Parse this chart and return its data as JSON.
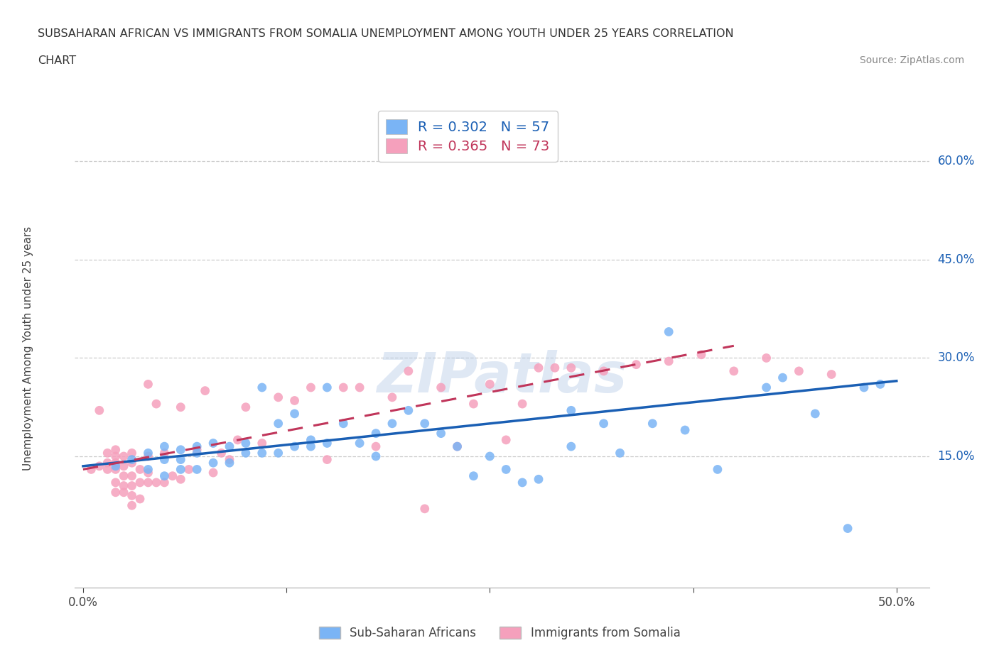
{
  "title_line1": "SUBSAHARAN AFRICAN VS IMMIGRANTS FROM SOMALIA UNEMPLOYMENT AMONG YOUTH UNDER 25 YEARS CORRELATION",
  "title_line2": "CHART",
  "source": "Source: ZipAtlas.com",
  "ylabel": "Unemployment Among Youth under 25 years",
  "xlim": [
    -0.005,
    0.52
  ],
  "ylim": [
    -0.05,
    0.68
  ],
  "xticks": [
    0.0,
    0.125,
    0.25,
    0.375,
    0.5
  ],
  "xtick_labels": [
    "0.0%",
    "",
    "",
    "",
    "50.0%"
  ],
  "ytick_right_vals": [
    0.15,
    0.3,
    0.45,
    0.6
  ],
  "ytick_right_labels": [
    "15.0%",
    "30.0%",
    "45.0%",
    "60.0%"
  ],
  "gridline_color": "#cccccc",
  "background_color": "#ffffff",
  "blue_color": "#7ab4f5",
  "blue_line_color": "#1a5fb4",
  "pink_color": "#f5a0bc",
  "pink_line_color": "#c0355a",
  "R_blue": 0.302,
  "N_blue": 57,
  "R_pink": 0.365,
  "N_pink": 73,
  "watermark": "ZIPatlas",
  "legend_label_blue": "Sub-Saharan Africans",
  "legend_label_pink": "Immigrants from Somalia",
  "blue_x": [
    0.02,
    0.03,
    0.04,
    0.04,
    0.05,
    0.05,
    0.05,
    0.06,
    0.06,
    0.06,
    0.07,
    0.07,
    0.07,
    0.08,
    0.08,
    0.09,
    0.09,
    0.1,
    0.1,
    0.11,
    0.11,
    0.12,
    0.12,
    0.13,
    0.13,
    0.14,
    0.14,
    0.15,
    0.15,
    0.16,
    0.17,
    0.18,
    0.18,
    0.19,
    0.2,
    0.21,
    0.22,
    0.23,
    0.24,
    0.25,
    0.26,
    0.27,
    0.28,
    0.3,
    0.3,
    0.32,
    0.33,
    0.35,
    0.36,
    0.37,
    0.39,
    0.42,
    0.43,
    0.45,
    0.47,
    0.48,
    0.49
  ],
  "blue_y": [
    0.135,
    0.145,
    0.13,
    0.155,
    0.12,
    0.145,
    0.165,
    0.13,
    0.145,
    0.16,
    0.13,
    0.155,
    0.165,
    0.14,
    0.17,
    0.14,
    0.165,
    0.155,
    0.17,
    0.155,
    0.255,
    0.155,
    0.2,
    0.165,
    0.215,
    0.165,
    0.175,
    0.17,
    0.255,
    0.2,
    0.17,
    0.15,
    0.185,
    0.2,
    0.22,
    0.2,
    0.185,
    0.165,
    0.12,
    0.15,
    0.13,
    0.11,
    0.115,
    0.22,
    0.165,
    0.2,
    0.155,
    0.2,
    0.34,
    0.19,
    0.13,
    0.255,
    0.27,
    0.215,
    0.04,
    0.255,
    0.26
  ],
  "pink_x": [
    0.005,
    0.01,
    0.01,
    0.015,
    0.015,
    0.015,
    0.02,
    0.02,
    0.02,
    0.02,
    0.02,
    0.02,
    0.025,
    0.025,
    0.025,
    0.025,
    0.025,
    0.03,
    0.03,
    0.03,
    0.03,
    0.03,
    0.03,
    0.035,
    0.035,
    0.035,
    0.04,
    0.04,
    0.04,
    0.04,
    0.045,
    0.045,
    0.05,
    0.05,
    0.055,
    0.06,
    0.06,
    0.065,
    0.07,
    0.075,
    0.08,
    0.085,
    0.09,
    0.095,
    0.1,
    0.11,
    0.12,
    0.13,
    0.14,
    0.15,
    0.16,
    0.17,
    0.18,
    0.19,
    0.2,
    0.21,
    0.22,
    0.23,
    0.24,
    0.25,
    0.26,
    0.27,
    0.28,
    0.29,
    0.3,
    0.32,
    0.34,
    0.36,
    0.38,
    0.4,
    0.42,
    0.44,
    0.46
  ],
  "pink_y": [
    0.13,
    0.135,
    0.22,
    0.13,
    0.14,
    0.155,
    0.095,
    0.11,
    0.13,
    0.14,
    0.15,
    0.16,
    0.095,
    0.105,
    0.12,
    0.135,
    0.15,
    0.075,
    0.09,
    0.105,
    0.12,
    0.14,
    0.155,
    0.085,
    0.11,
    0.13,
    0.11,
    0.125,
    0.15,
    0.26,
    0.11,
    0.23,
    0.11,
    0.155,
    0.12,
    0.115,
    0.225,
    0.13,
    0.16,
    0.25,
    0.125,
    0.155,
    0.145,
    0.175,
    0.225,
    0.17,
    0.24,
    0.235,
    0.255,
    0.145,
    0.255,
    0.255,
    0.165,
    0.24,
    0.28,
    0.07,
    0.255,
    0.165,
    0.23,
    0.26,
    0.175,
    0.23,
    0.285,
    0.285,
    0.285,
    0.28,
    0.29,
    0.295,
    0.305,
    0.28,
    0.3,
    0.28,
    0.275
  ]
}
